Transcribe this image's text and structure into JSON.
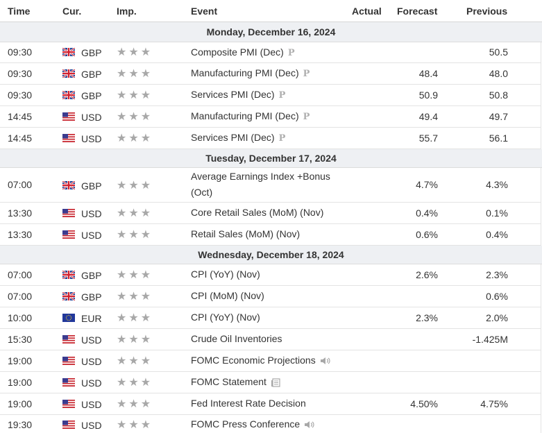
{
  "header": {
    "time": "Time",
    "cur": "Cur.",
    "imp": "Imp.",
    "event": "Event",
    "actual": "Actual",
    "forecast": "Forecast",
    "previous": "Previous"
  },
  "colors": {
    "date_bg": "#eef0f3",
    "star": "#a8a8a8",
    "text": "#333333"
  },
  "dates": [
    "Monday, December 16, 2024",
    "Tuesday, December 17, 2024",
    "Wednesday, December 18, 2024"
  ],
  "rows": [
    {
      "time": "09:30",
      "flag": "gb-flag-icon",
      "cur": "GBP",
      "stars": "★★★",
      "event": "Composite PMI (Dec)",
      "badge": "P",
      "forecast": "",
      "previous": "50.5"
    },
    {
      "time": "09:30",
      "flag": "gb-flag-icon",
      "cur": "GBP",
      "stars": "★★★",
      "event": "Manufacturing PMI (Dec)",
      "badge": "P",
      "forecast": "48.4",
      "previous": "48.0"
    },
    {
      "time": "09:30",
      "flag": "gb-flag-icon",
      "cur": "GBP",
      "stars": "★★★",
      "event": "Services PMI (Dec)",
      "badge": "P",
      "forecast": "50.9",
      "previous": "50.8"
    },
    {
      "time": "14:45",
      "flag": "us-flag-icon",
      "cur": "USD",
      "stars": "★★★",
      "event": "Manufacturing PMI (Dec)",
      "badge": "P",
      "forecast": "49.4",
      "previous": "49.7"
    },
    {
      "time": "14:45",
      "flag": "us-flag-icon",
      "cur": "USD",
      "stars": "★★★",
      "event": "Services PMI (Dec)",
      "badge": "P",
      "forecast": "55.7",
      "previous": "56.1"
    },
    {
      "time": "07:00",
      "flag": "gb-flag-icon",
      "cur": "GBP",
      "stars": "★★★",
      "event_line1": "Average Earnings Index +Bonus",
      "event_line2": "(Oct)",
      "forecast": "4.7%",
      "previous": "4.3%"
    },
    {
      "time": "13:30",
      "flag": "us-flag-icon",
      "cur": "USD",
      "stars": "★★★",
      "event": "Core Retail Sales (MoM) (Nov)",
      "forecast": "0.4%",
      "previous": "0.1%"
    },
    {
      "time": "13:30",
      "flag": "us-flag-icon",
      "cur": "USD",
      "stars": "★★★",
      "event": "Retail Sales (MoM) (Nov)",
      "forecast": "0.6%",
      "previous": "0.4%"
    },
    {
      "time": "07:00",
      "flag": "gb-flag-icon",
      "cur": "GBP",
      "stars": "★★★",
      "event": "CPI (YoY) (Nov)",
      "forecast": "2.6%",
      "previous": "2.3%"
    },
    {
      "time": "07:00",
      "flag": "gb-flag-icon",
      "cur": "GBP",
      "stars": "★★★",
      "event": "CPI (MoM) (Nov)",
      "forecast": "",
      "previous": "0.6%"
    },
    {
      "time": "10:00",
      "flag": "eu-flag-icon",
      "cur": "EUR",
      "stars": "★★★",
      "event": "CPI (YoY) (Nov)",
      "forecast": "2.3%",
      "previous": "2.0%"
    },
    {
      "time": "15:30",
      "flag": "us-flag-icon",
      "cur": "USD",
      "stars": "★★★",
      "event": "Crude Oil Inventories",
      "forecast": "",
      "previous": "-1.425M"
    },
    {
      "time": "19:00",
      "flag": "us-flag-icon",
      "cur": "USD",
      "stars": "★★★",
      "event": "FOMC Economic Projections",
      "icon": "speaker-icon",
      "forecast": "",
      "previous": ""
    },
    {
      "time": "19:00",
      "flag": "us-flag-icon",
      "cur": "USD",
      "stars": "★★★",
      "event": "FOMC Statement",
      "icon": "document-icon",
      "forecast": "",
      "previous": ""
    },
    {
      "time": "19:00",
      "flag": "us-flag-icon",
      "cur": "USD",
      "stars": "★★★",
      "event": "Fed Interest Rate Decision",
      "forecast": "4.50%",
      "previous": "4.75%"
    },
    {
      "time": "19:30",
      "flag": "us-flag-icon",
      "cur": "USD",
      "stars": "★★★",
      "event": "FOMC Press Conference",
      "icon": "speaker-icon",
      "forecast": "",
      "previous": ""
    }
  ]
}
